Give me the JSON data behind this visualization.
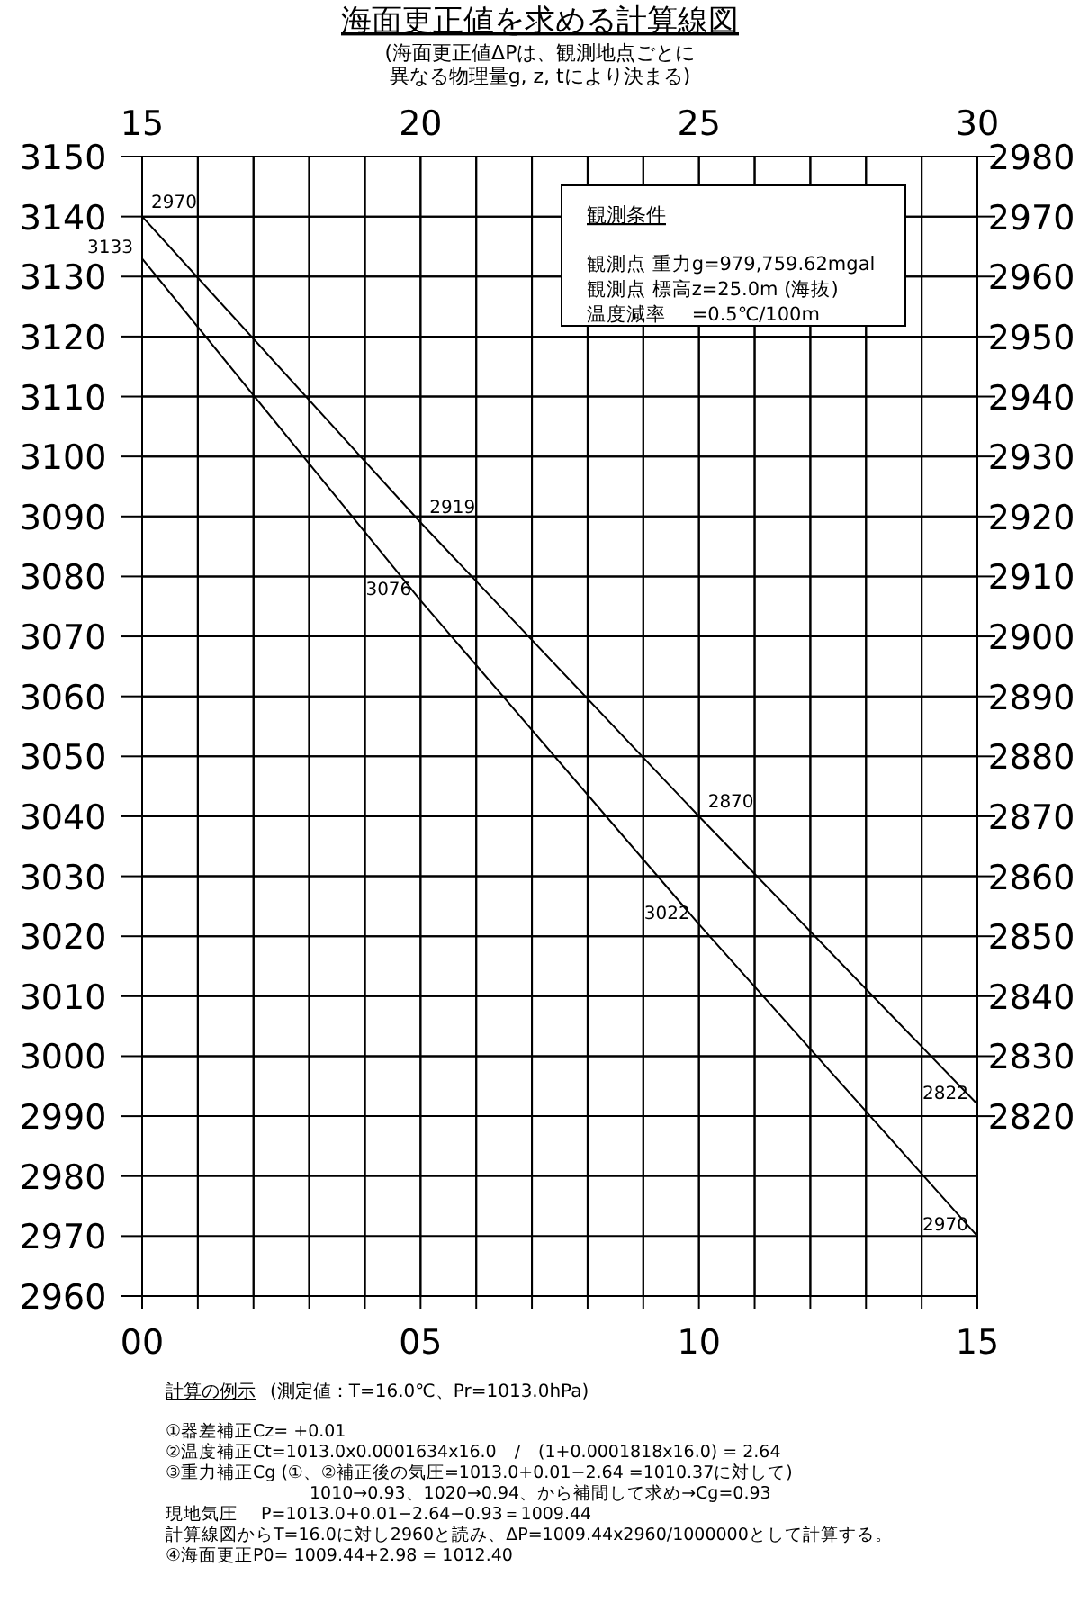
{
  "chart_data": [
    {
      "type": "line",
      "title": "海面更正値を求める計算線図",
      "subtitle": "(海面更正値ΔPは、観測地点ごとに異なる物理量g, z, tにより決まる)",
      "series": [
        {
          "x": [
            0,
            5,
            10,
            15
          ],
          "values": [
            3133,
            3076,
            3022,
            2970
          ],
          "color": "#000000"
        }
      ],
      "xlim": [
        0,
        15
      ],
      "xticks": [
        {
          "value": 0,
          "label": "00"
        },
        {
          "value": 1,
          "label": null
        },
        {
          "value": 2,
          "label": null
        },
        {
          "value": 3,
          "label": null
        },
        {
          "value": 4,
          "label": null
        },
        {
          "value": 5,
          "label": "05"
        },
        {
          "value": 6,
          "label": null
        },
        {
          "value": 7,
          "label": null
        },
        {
          "value": 8,
          "label": null
        },
        {
          "value": 9,
          "label": null
        },
        {
          "value": 10,
          "label": "10"
        },
        {
          "value": 11,
          "label": null
        },
        {
          "value": 12,
          "label": null
        },
        {
          "value": 13,
          "label": null
        },
        {
          "value": 14,
          "label": null
        },
        {
          "value": 15,
          "label": "15"
        }
      ],
      "ylim": [
        2960,
        3150
      ],
      "yticks": [
        2960,
        2970,
        2980,
        2990,
        3000,
        3010,
        3020,
        3030,
        3040,
        3050,
        3060,
        3070,
        3080,
        3090,
        3100,
        3110,
        3120,
        3130,
        3140,
        3150
      ],
      "grid": true,
      "data_labels": true,
      "line_style": "solid",
      "annotations": [
        "観測条件",
        "観測点 重力g=979,759.62mgal",
        "観測点 標高z=25.0m (海抜)",
        "温度減率　 =0.5℃/100m",
        "計算の例示",
        "(測定値：T=16.0℃、Pr=1013.0hPa)",
        "①器差補正Cz= +0.01",
        "②温度補正Ct=1013.0x0.0001634x16.0　/　(1+0.0001818x16.0) = 2.64",
        "③重力補正Cg (①、②補正後の気圧=1013.0+0.01−2.64 =1010.37に対して)",
        "1010→0.93、1020→0.94、から補間して求め→Cg=0.93",
        "現地気圧　 P=1013.0+0.01−2.64−0.93＝1009.44",
        "計算線図からT=16.0に対し2960と読み、ΔP=1009.44x2960/1000000として計算する。",
        "④海面更正P0= 1009.44+2.98 = 1012.40"
      ]
    },
    {
      "type": "line",
      "series": [
        {
          "x": [
            15,
            20,
            25,
            30
          ],
          "values": [
            2970,
            2919,
            2870,
            2822
          ],
          "color": "#000000"
        }
      ],
      "xlim": [
        15,
        30
      ],
      "xticks": [
        15,
        {
          "value": 16,
          "label": null
        },
        {
          "value": 17,
          "label": null
        },
        {
          "value": 18,
          "label": null
        },
        {
          "value": 19,
          "label": null
        },
        20,
        {
          "value": 21,
          "label": null
        },
        {
          "value": 22,
          "label": null
        },
        {
          "value": 23,
          "label": null
        },
        {
          "value": 24,
          "label": null
        },
        25,
        {
          "value": 26,
          "label": null
        },
        {
          "value": 27,
          "label": null
        },
        {
          "value": 28,
          "label": null
        },
        {
          "value": 29,
          "label": null
        },
        30
      ],
      "ylim": [
        2790,
        2980
      ],
      "yticks": [
        2820,
        2830,
        2840,
        2850,
        2860,
        2870,
        2880,
        2890,
        2900,
        2910,
        2920,
        2930,
        2940,
        2950,
        2960,
        2970,
        2980
      ],
      "grid": true,
      "data_labels": true,
      "line_style": "solid"
    }
  ]
}
